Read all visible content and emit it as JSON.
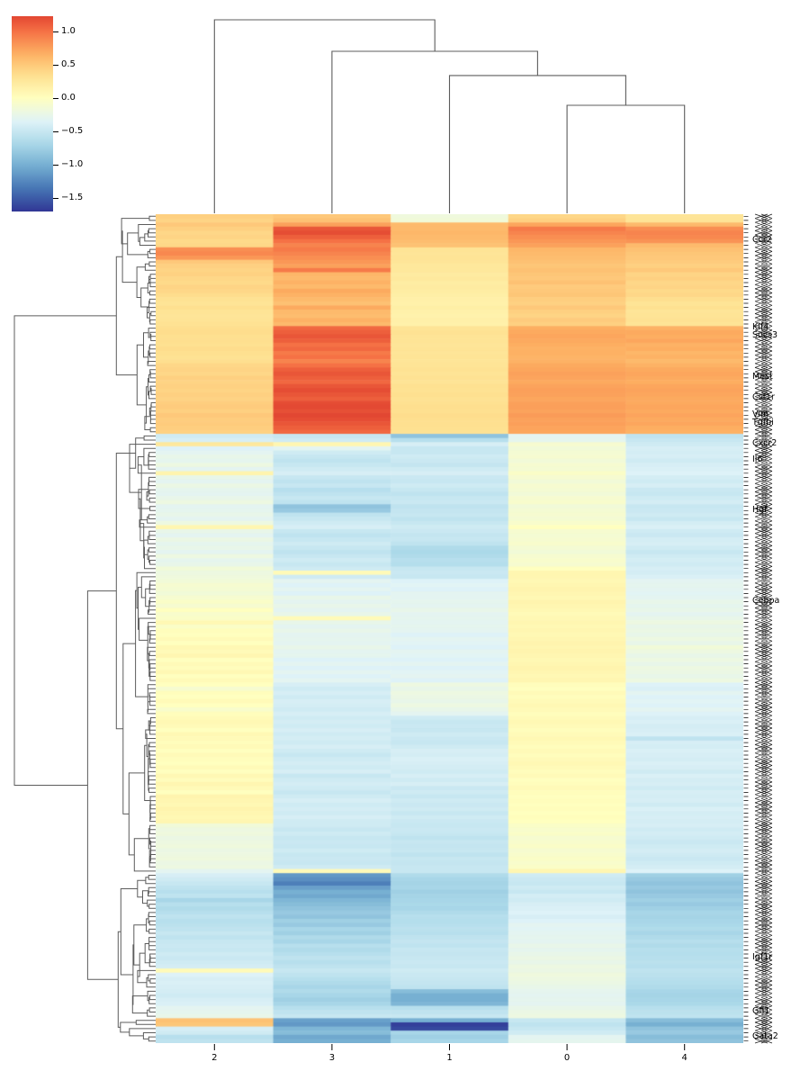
{
  "figure": {
    "kind": "seaborn-clustermap",
    "background": "#ffffff"
  },
  "colorbar": {
    "vmin": -1.7,
    "vmax": 1.23,
    "tick_values": [
      1.0,
      0.5,
      0.0,
      -0.5,
      -1.0,
      -1.5
    ],
    "ticks": [
      "1.0",
      "0.5",
      "0.0",
      "−0.5",
      "−1.0",
      "−1.5"
    ]
  },
  "chart_data": {
    "type": "heatmap",
    "title": "",
    "xlabel": "",
    "ylabel": "",
    "columns": [
      "2",
      "3",
      "1",
      "0",
      "4"
    ],
    "value_range": {
      "vmin": -1.7,
      "vmax": 1.23,
      "center": 0
    },
    "colormap": {
      "name": "RdYlBu_r",
      "anchors": [
        "#313695",
        "#4575b4",
        "#74add1",
        "#abd9e9",
        "#e0f3f8",
        "#ffffbf",
        "#fee090",
        "#fdae61",
        "#f46d43",
        "#d73027",
        "#a50026"
      ]
    },
    "colors": {
      "dendrogram": "#5c5c5c",
      "tick": "#000000"
    },
    "col_dendrogram": {
      "d": 1.0,
      "children": [
        {
          "leaf": "2"
        },
        {
          "d": 0.837,
          "children": [
            {
              "leaf": "3"
            },
            {
              "d": 0.712,
              "children": [
                {
                  "leaf": "1"
                },
                {
                  "d": 0.558,
                  "children": [
                    {
                      "leaf": "0"
                    },
                    {
                      "leaf": "4"
                    }
                  ]
                }
              ]
            }
          ]
        }
      ]
    },
    "row_labels": [
      {
        "row": 6,
        "text": "Ccr2"
      },
      {
        "row": 27,
        "text": "Klf4"
      },
      {
        "row": 29,
        "text": "Socs3"
      },
      {
        "row": 39,
        "text": "Mest"
      },
      {
        "row": 44,
        "text": "Csf1r"
      },
      {
        "row": 48,
        "text": "Vim"
      },
      {
        "row": 50,
        "text": "Tgfbi"
      },
      {
        "row": 55,
        "text": "Cxcr2"
      },
      {
        "row": 59,
        "text": "Il6"
      },
      {
        "row": 71,
        "text": "Hgf"
      },
      {
        "row": 93,
        "text": "Cebpa"
      },
      {
        "row": 179,
        "text": "Igf1r"
      },
      {
        "row": 192,
        "text": "Gfi1"
      },
      {
        "row": 198,
        "text": "Gata2"
      }
    ],
    "rows": [
      [
        0.45,
        0.5,
        -0.18,
        0.4,
        0.28
      ],
      [
        0.42,
        0.55,
        -0.15,
        0.45,
        0.3
      ],
      [
        0.5,
        0.75,
        0.6,
        0.72,
        0.6
      ],
      [
        0.45,
        1.15,
        0.6,
        0.95,
        0.85
      ],
      [
        0.4,
        1.2,
        0.62,
        0.9,
        0.9
      ],
      [
        0.42,
        1.1,
        0.6,
        0.85,
        0.88
      ],
      [
        0.38,
        1.0,
        0.58,
        0.8,
        0.82
      ],
      [
        0.4,
        0.9,
        0.55,
        0.75,
        0.6
      ],
      [
        0.85,
        0.95,
        0.3,
        0.62,
        0.55
      ],
      [
        0.88,
        0.9,
        0.28,
        0.6,
        0.52
      ],
      [
        0.8,
        0.85,
        0.3,
        0.58,
        0.5
      ],
      [
        0.5,
        0.8,
        0.28,
        0.55,
        0.48
      ],
      [
        0.45,
        0.75,
        0.25,
        0.52,
        0.45
      ],
      [
        0.42,
        0.95,
        0.25,
        0.55,
        0.5
      ],
      [
        0.44,
        0.62,
        0.22,
        0.52,
        0.42
      ],
      [
        0.4,
        0.6,
        0.24,
        0.5,
        0.45
      ],
      [
        0.38,
        0.65,
        0.2,
        0.55,
        0.4
      ],
      [
        0.42,
        0.6,
        0.22,
        0.48,
        0.42
      ],
      [
        0.4,
        0.7,
        0.2,
        0.5,
        0.38
      ],
      [
        0.36,
        0.65,
        0.18,
        0.52,
        0.4
      ],
      [
        0.32,
        0.6,
        0.16,
        0.46,
        0.35
      ],
      [
        0.3,
        0.55,
        0.15,
        0.44,
        0.3
      ],
      [
        0.34,
        0.7,
        0.18,
        0.5,
        0.33
      ],
      [
        0.3,
        0.6,
        0.15,
        0.45,
        0.28
      ],
      [
        0.28,
        0.58,
        0.14,
        0.42,
        0.3
      ],
      [
        0.3,
        0.65,
        0.16,
        0.48,
        0.32
      ],
      [
        0.32,
        0.6,
        0.15,
        0.45,
        0.3
      ],
      [
        0.35,
        1.05,
        0.3,
        0.68,
        0.65
      ],
      [
        0.36,
        1.1,
        0.32,
        0.7,
        0.7
      ],
      [
        0.34,
        1.15,
        0.3,
        0.72,
        0.68
      ],
      [
        0.35,
        1.1,
        0.3,
        0.7,
        0.72
      ],
      [
        0.33,
        1.0,
        0.28,
        0.68,
        0.65
      ],
      [
        0.36,
        1.05,
        0.3,
        0.65,
        0.68
      ],
      [
        0.34,
        0.95,
        0.28,
        0.66,
        0.62
      ],
      [
        0.32,
        1.0,
        0.3,
        0.64,
        0.65
      ],
      [
        0.35,
        0.9,
        0.28,
        0.65,
        0.6
      ],
      [
        0.4,
        1.0,
        0.3,
        0.7,
        0.65
      ],
      [
        0.42,
        1.1,
        0.32,
        0.72,
        0.7
      ],
      [
        0.4,
        1.15,
        0.3,
        0.75,
        0.72
      ],
      [
        0.45,
        1.1,
        0.32,
        0.73,
        0.7
      ],
      [
        0.42,
        1.05,
        0.3,
        0.7,
        0.68
      ],
      [
        0.44,
        1.15,
        0.33,
        0.74,
        0.72
      ],
      [
        0.42,
        1.2,
        0.32,
        0.76,
        0.74
      ],
      [
        0.45,
        1.15,
        0.34,
        0.75,
        0.72
      ],
      [
        0.43,
        1.1,
        0.32,
        0.72,
        0.7
      ],
      [
        0.46,
        1.2,
        0.33,
        0.75,
        0.7
      ],
      [
        0.48,
        1.22,
        0.35,
        0.76,
        0.72
      ],
      [
        0.45,
        1.18,
        0.34,
        0.74,
        0.7
      ],
      [
        0.5,
        1.23,
        0.36,
        0.78,
        0.73
      ],
      [
        0.47,
        1.2,
        0.35,
        0.75,
        0.7
      ],
      [
        0.48,
        1.15,
        0.34,
        0.76,
        0.72
      ],
      [
        0.46,
        1.1,
        0.33,
        0.73,
        0.68
      ],
      [
        0.44,
        1.05,
        0.32,
        0.72,
        0.66
      ],
      [
        -0.45,
        -0.5,
        -0.85,
        -0.3,
        -0.55
      ],
      [
        -0.4,
        -0.45,
        -0.6,
        -0.28,
        -0.5
      ],
      [
        0.25,
        0.1,
        -0.4,
        -0.1,
        -0.45
      ],
      [
        -0.35,
        -0.3,
        -0.5,
        -0.15,
        -0.4
      ],
      [
        -0.3,
        -0.45,
        -0.5,
        -0.12,
        -0.42
      ],
      [
        -0.25,
        -0.5,
        -0.45,
        -0.1,
        -0.4
      ],
      [
        -0.28,
        -0.55,
        -0.48,
        -0.15,
        -0.45
      ],
      [
        -0.2,
        -0.5,
        -0.52,
        -0.1,
        -0.4
      ],
      [
        -0.3,
        -0.45,
        -0.45,
        -0.12,
        -0.38
      ],
      [
        0.12,
        -0.4,
        -0.4,
        -0.05,
        -0.35
      ],
      [
        -0.25,
        -0.5,
        -0.48,
        -0.1,
        -0.42
      ],
      [
        -0.3,
        -0.55,
        -0.5,
        -0.15,
        -0.45
      ],
      [
        -0.22,
        -0.5,
        -0.45,
        -0.1,
        -0.4
      ],
      [
        -0.28,
        -0.6,
        -0.5,
        -0.12,
        -0.48
      ],
      [
        -0.3,
        -0.55,
        -0.55,
        -0.15,
        -0.5
      ],
      [
        -0.25,
        -0.5,
        -0.5,
        -0.1,
        -0.45
      ],
      [
        -0.2,
        -0.55,
        -0.48,
        -0.08,
        -0.42
      ],
      [
        -0.3,
        -0.85,
        -0.55,
        -0.15,
        -0.5
      ],
      [
        -0.28,
        -0.8,
        -0.52,
        -0.12,
        -0.48
      ],
      [
        -0.25,
        -0.55,
        -0.5,
        -0.1,
        -0.45
      ],
      [
        -0.3,
        -0.5,
        -0.55,
        -0.12,
        -0.5
      ],
      [
        -0.2,
        -0.45,
        -0.5,
        -0.08,
        -0.42
      ],
      [
        0.1,
        -0.4,
        -0.45,
        0.0,
        -0.38
      ],
      [
        -0.25,
        -0.5,
        -0.48,
        -0.1,
        -0.45
      ],
      [
        -0.3,
        -0.55,
        -0.52,
        -0.12,
        -0.48
      ],
      [
        -0.22,
        -0.5,
        -0.5,
        -0.1,
        -0.42
      ],
      [
        -0.28,
        -0.45,
        -0.55,
        -0.08,
        -0.4
      ],
      [
        -0.25,
        -0.5,
        -0.65,
        -0.12,
        -0.45
      ],
      [
        -0.3,
        -0.55,
        -0.68,
        -0.15,
        -0.5
      ],
      [
        -0.2,
        -0.5,
        -0.65,
        -0.1,
        -0.45
      ],
      [
        -0.28,
        -0.45,
        -0.6,
        -0.08,
        -0.42
      ],
      [
        -0.25,
        -0.5,
        -0.62,
        -0.1,
        -0.45
      ],
      [
        -0.15,
        -0.45,
        -0.5,
        0.0,
        -0.4
      ],
      [
        -0.2,
        0.05,
        -0.48,
        0.1,
        -0.42
      ],
      [
        -0.18,
        -0.45,
        -0.5,
        0.1,
        -0.38
      ],
      [
        -0.15,
        -0.3,
        -0.35,
        0.08,
        -0.3
      ],
      [
        -0.1,
        -0.35,
        -0.32,
        0.1,
        -0.28
      ],
      [
        -0.12,
        -0.3,
        -0.35,
        0.12,
        -0.3
      ],
      [
        -0.15,
        -0.35,
        -0.3,
        0.1,
        -0.32
      ],
      [
        -0.1,
        -0.25,
        -0.3,
        0.08,
        -0.3
      ],
      [
        -0.05,
        -0.3,
        -0.28,
        0.12,
        -0.25
      ],
      [
        -0.1,
        -0.25,
        -0.3,
        0.1,
        -0.28
      ],
      [
        0.0,
        -0.3,
        -0.25,
        0.08,
        -0.25
      ],
      [
        -0.08,
        -0.25,
        -0.3,
        0.05,
        -0.3
      ],
      [
        -0.05,
        0.05,
        -0.28,
        0.08,
        -0.25
      ],
      [
        0.08,
        -0.25,
        -0.3,
        0.1,
        -0.2
      ],
      [
        -0.05,
        -0.3,
        -0.28,
        0.08,
        -0.25
      ],
      [
        0.02,
        -0.25,
        -0.3,
        0.1,
        -0.22
      ],
      [
        0.0,
        -0.3,
        -0.35,
        0.08,
        -0.25
      ],
      [
        0.05,
        -0.28,
        -0.3,
        0.1,
        -0.2
      ],
      [
        0.0,
        -0.3,
        -0.32,
        0.12,
        -0.25
      ],
      [
        0.08,
        -0.25,
        -0.35,
        0.1,
        -0.15
      ],
      [
        0.05,
        -0.3,
        -0.3,
        0.12,
        -0.2
      ],
      [
        0.1,
        -0.28,
        -0.32,
        0.1,
        -0.25
      ],
      [
        0.0,
        -0.35,
        -0.35,
        0.08,
        -0.2
      ],
      [
        0.05,
        -0.3,
        -0.3,
        0.1,
        -0.25
      ],
      [
        0.02,
        -0.35,
        -0.35,
        0.12,
        -0.2
      ],
      [
        0.08,
        -0.3,
        -0.32,
        0.1,
        -0.22
      ],
      [
        0.0,
        -0.35,
        -0.3,
        0.08,
        -0.25
      ],
      [
        0.05,
        -0.3,
        -0.35,
        0.1,
        -0.2
      ],
      [
        0.0,
        -0.4,
        -0.2,
        0.02,
        -0.35
      ],
      [
        -0.1,
        -0.45,
        -0.25,
        0.0,
        -0.38
      ],
      [
        0.02,
        -0.4,
        -0.2,
        0.05,
        -0.3
      ],
      [
        0.0,
        -0.45,
        -0.22,
        0.02,
        -0.35
      ],
      [
        0.05,
        -0.4,
        -0.25,
        0.05,
        -0.32
      ],
      [
        0.0,
        -0.42,
        -0.2,
        0.08,
        -0.35
      ],
      [
        -0.08,
        -0.45,
        -0.25,
        0.05,
        -0.3
      ],
      [
        0.02,
        -0.4,
        -0.3,
        0.02,
        -0.35
      ],
      [
        0.05,
        -0.45,
        -0.45,
        0.05,
        -0.4
      ],
      [
        0.08,
        -0.42,
        -0.5,
        0.08,
        -0.38
      ],
      [
        0.05,
        -0.45,
        -0.48,
        0.05,
        -0.42
      ],
      [
        0.0,
        -0.4,
        -0.5,
        0.02,
        -0.4
      ],
      [
        0.08,
        -0.45,
        -0.45,
        0.05,
        -0.38
      ],
      [
        0.05,
        -0.42,
        -0.48,
        0.08,
        -0.55
      ],
      [
        0.02,
        -0.45,
        -0.5,
        0.05,
        -0.4
      ],
      [
        0.05,
        -0.4,
        -0.45,
        0.02,
        -0.42
      ],
      [
        0.0,
        -0.45,
        -0.4,
        0.05,
        -0.38
      ],
      [
        0.05,
        -0.5,
        -0.42,
        0.02,
        -0.4
      ],
      [
        0.02,
        -0.45,
        -0.38,
        0.05,
        -0.42
      ],
      [
        0.0,
        -0.42,
        -0.4,
        0.08,
        -0.38
      ],
      [
        0.05,
        -0.45,
        -0.42,
        0.05,
        -0.4
      ],
      [
        0.0,
        -0.4,
        -0.45,
        0.02,
        -0.45
      ],
      [
        0.08,
        -0.5,
        -0.4,
        0.05,
        -0.38
      ],
      [
        0.02,
        -0.45,
        -0.45,
        0.0,
        -0.42
      ],
      [
        0.1,
        -0.42,
        -0.4,
        0.02,
        -0.4
      ],
      [
        0.05,
        -0.45,
        -0.48,
        0.05,
        -0.45
      ],
      [
        0.0,
        -0.5,
        -0.45,
        0.02,
        -0.4
      ],
      [
        0.12,
        -0.45,
        -0.5,
        0.0,
        -0.42
      ],
      [
        0.1,
        -0.4,
        -0.45,
        0.02,
        -0.4
      ],
      [
        0.08,
        -0.45,
        -0.48,
        0.0,
        -0.45
      ],
      [
        0.12,
        -0.42,
        -0.45,
        0.02,
        -0.38
      ],
      [
        0.1,
        -0.45,
        -0.5,
        0.0,
        -0.42
      ],
      [
        0.08,
        -0.4,
        -0.45,
        0.02,
        -0.4
      ],
      [
        0.1,
        -0.45,
        -0.48,
        0.0,
        -0.42
      ],
      [
        -0.15,
        -0.45,
        -0.5,
        -0.05,
        -0.4
      ],
      [
        -0.2,
        -0.5,
        -0.48,
        -0.08,
        -0.45
      ],
      [
        -0.18,
        -0.45,
        -0.5,
        -0.05,
        -0.42
      ],
      [
        -0.22,
        -0.5,
        -0.55,
        -0.1,
        -0.45
      ],
      [
        -0.2,
        -0.48,
        -0.5,
        -0.08,
        -0.48
      ],
      [
        -0.18,
        -0.5,
        -0.52,
        -0.05,
        -0.45
      ],
      [
        -0.22,
        -0.45,
        -0.5,
        -0.1,
        -0.42
      ],
      [
        -0.2,
        -0.5,
        -0.55,
        -0.08,
        -0.45
      ],
      [
        -0.18,
        -0.48,
        -0.5,
        -0.05,
        -0.48
      ],
      [
        -0.22,
        -0.5,
        -0.52,
        -0.08,
        -0.45
      ],
      [
        -0.2,
        -0.45,
        -0.5,
        -0.05,
        -0.42
      ],
      [
        -0.3,
        0.05,
        -0.5,
        0.1,
        -0.35
      ],
      [
        -0.4,
        -1.15,
        -0.65,
        -0.45,
        -0.75
      ],
      [
        -0.45,
        -1.2,
        -0.7,
        -0.48,
        -0.8
      ],
      [
        -0.5,
        -1.3,
        -0.72,
        -0.5,
        -0.85
      ],
      [
        -0.55,
        -1.1,
        -0.7,
        -0.45,
        -0.8
      ],
      [
        -0.6,
        -1.0,
        -0.75,
        -0.5,
        -0.85
      ],
      [
        -0.55,
        -1.05,
        -0.72,
        -0.42,
        -0.8
      ],
      [
        -0.7,
        -0.95,
        -0.7,
        -0.45,
        -0.75
      ],
      [
        -0.6,
        -0.9,
        -0.68,
        -0.4,
        -0.8
      ],
      [
        -0.65,
        -0.85,
        -0.7,
        -0.38,
        -0.75
      ],
      [
        -0.6,
        -0.8,
        -0.65,
        -0.35,
        -0.7
      ],
      [
        -0.55,
        -0.85,
        -0.6,
        -0.4,
        -0.72
      ],
      [
        -0.6,
        -0.75,
        -0.62,
        -0.35,
        -0.7
      ],
      [
        -0.58,
        -0.8,
        -0.6,
        -0.3,
        -0.68
      ],
      [
        -0.55,
        -0.7,
        -0.58,
        -0.32,
        -0.65
      ],
      [
        -0.5,
        -0.75,
        -0.6,
        -0.3,
        -0.7
      ],
      [
        -0.55,
        -0.65,
        -0.55,
        -0.28,
        -0.65
      ],
      [
        -0.5,
        -0.7,
        -0.52,
        -0.3,
        -0.6
      ],
      [
        -0.48,
        -0.6,
        -0.55,
        -0.25,
        -0.65
      ],
      [
        -0.5,
        -0.65,
        -0.5,
        -0.28,
        -0.6
      ],
      [
        -0.45,
        -0.6,
        -0.52,
        -0.25,
        -0.62
      ],
      [
        -0.48,
        -0.55,
        -0.5,
        -0.22,
        -0.6
      ],
      [
        -0.45,
        -0.6,
        -0.48,
        -0.25,
        -0.58
      ],
      [
        -0.42,
        -0.55,
        -0.5,
        -0.2,
        -0.6
      ],
      [
        0.05,
        -0.5,
        -0.45,
        -0.22,
        -0.55
      ],
      [
        -0.35,
        -0.55,
        -0.48,
        -0.18,
        -0.58
      ],
      [
        -0.4,
        -0.6,
        -0.5,
        -0.2,
        -0.6
      ],
      [
        -0.38,
        -0.65,
        -0.52,
        -0.22,
        -0.62
      ],
      [
        -0.4,
        -0.7,
        -0.55,
        -0.25,
        -0.65
      ],
      [
        -0.42,
        -0.65,
        -0.9,
        -0.28,
        -0.7
      ],
      [
        -0.45,
        -0.7,
        -1.0,
        -0.3,
        -0.72
      ],
      [
        -0.4,
        -0.75,
        -1.0,
        -0.28,
        -0.7
      ],
      [
        -0.38,
        -0.7,
        -0.95,
        -0.3,
        -0.68
      ],
      [
        -0.3,
        -0.6,
        -0.6,
        -0.25,
        -0.6
      ],
      [
        -0.28,
        -0.55,
        -0.55,
        -0.22,
        -0.58
      ],
      [
        -0.25,
        -0.5,
        -0.5,
        -0.2,
        -0.55
      ],
      [
        0.55,
        -1.1,
        -1.0,
        -0.5,
        -0.9
      ],
      [
        0.52,
        -1.15,
        -1.65,
        -0.55,
        -1.0
      ],
      [
        -0.4,
        -0.95,
        -1.6,
        -0.5,
        -0.85
      ],
      [
        -0.45,
        -0.9,
        -0.7,
        -0.45,
        -0.8
      ],
      [
        -0.6,
        -1.05,
        -0.75,
        -0.3,
        -0.9
      ],
      [
        -0.55,
        -1.0,
        -0.7,
        -0.28,
        -0.85
      ]
    ]
  }
}
